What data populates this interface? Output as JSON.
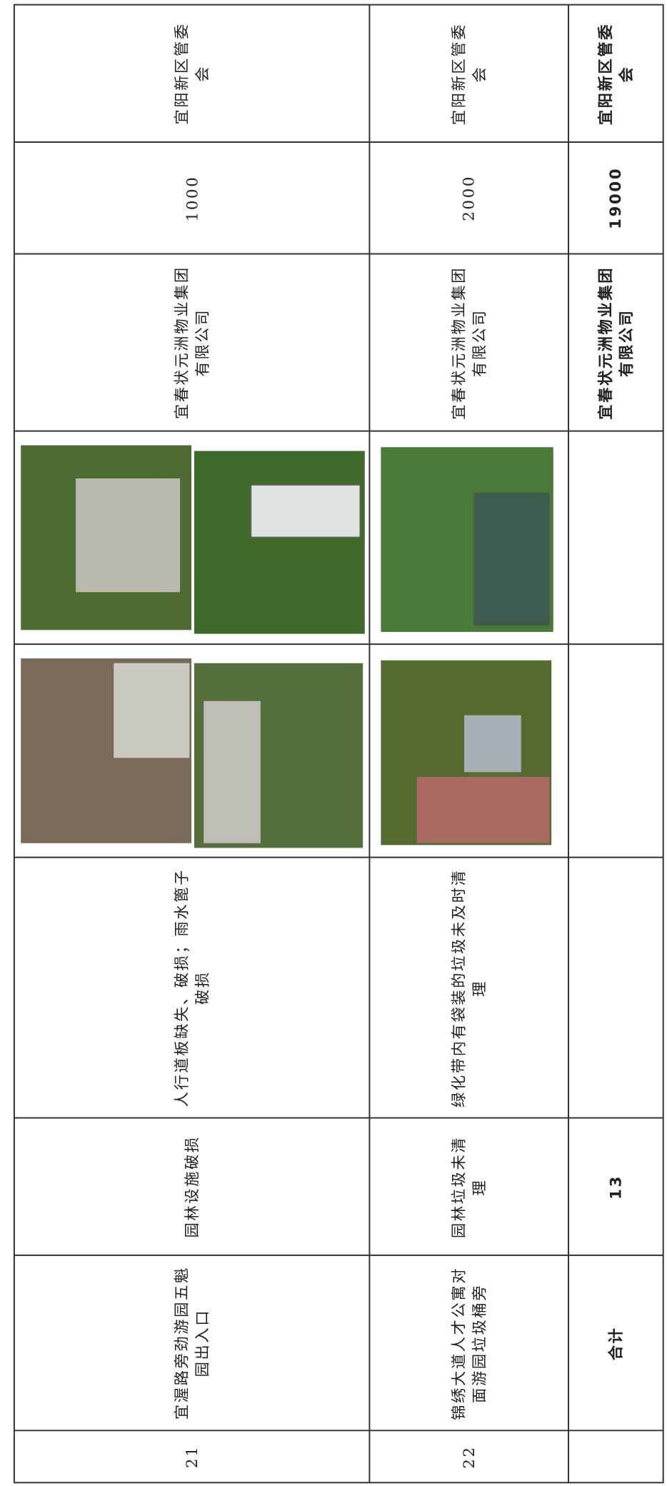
{
  "table": {
    "rows": [
      {
        "no": "21",
        "location": "宜渥路旁劲游园五魁园出入口",
        "category": "园林设施破损",
        "problem": "人行道板缺失、破损；雨水篦子破损",
        "company": "宜春状元洲物业集团有限公司",
        "amount": "1000",
        "dept": "宜阳新区管委会"
      },
      {
        "no": "22",
        "location": "锦绣大道人才公寓对面游园垃圾桶旁",
        "category": "园林垃圾未清理",
        "problem": "绿化带内有袋装的垃圾未及时清理",
        "company": "宜春状元洲物业集团有限公司",
        "amount": "2000",
        "dept": "宜阳新区管委会"
      }
    ],
    "total": {
      "label": "合计",
      "count": "13",
      "company": "宜春状元洲物业集团有限公司",
      "amount": "19000",
      "dept": "宜阳新区管委会"
    }
  }
}
